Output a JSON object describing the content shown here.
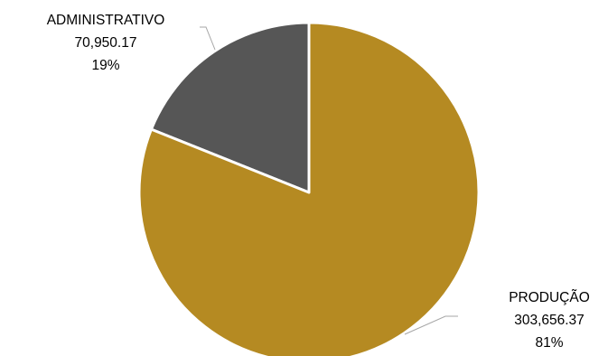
{
  "chart_data": {
    "type": "pie",
    "title": "",
    "categories": [
      "ADMINISTRATIVO",
      "PRODUÇÃO"
    ],
    "values": [
      70950.17,
      303656.37
    ],
    "value_labels": [
      "70,950.17",
      "303,656.37"
    ],
    "percent_labels": [
      "19%",
      "81%"
    ],
    "colors": [
      "#565656",
      "#b58a22"
    ],
    "legend": "none",
    "start_angle_deg": 0,
    "direction": "counterclockwise-from-top"
  }
}
